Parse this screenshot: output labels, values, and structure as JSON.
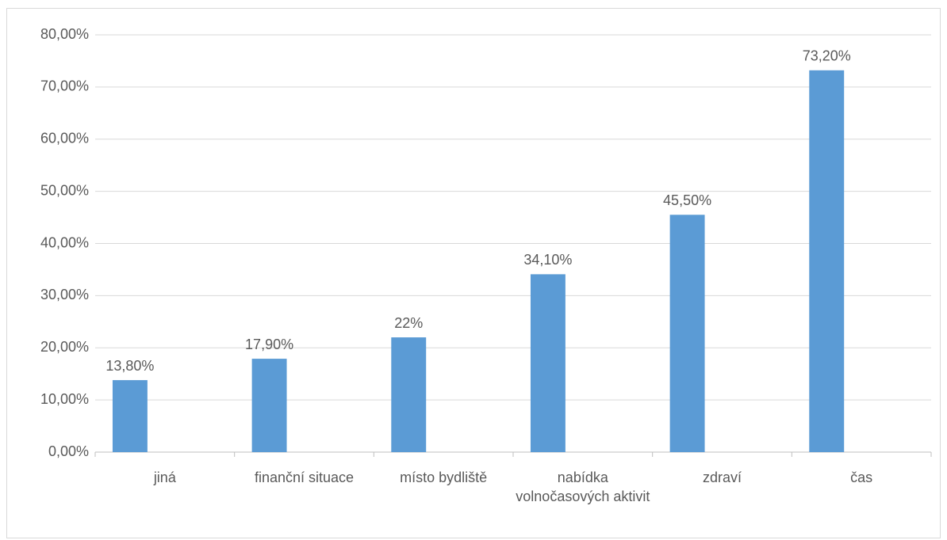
{
  "chart_data": {
    "type": "bar",
    "categories": [
      "jiná",
      "finanční situace",
      "místo bydliště",
      "nabídka volnočasových aktivit",
      "zdraví",
      "čas"
    ],
    "values": [
      13.8,
      17.9,
      22,
      34.1,
      45.5,
      73.2
    ],
    "value_labels": [
      "13,80%",
      "17,90%",
      "22%",
      "34,10%",
      "45,50%",
      "73,20%"
    ],
    "color": "#5b9bd5",
    "ylim": [
      0,
      80
    ],
    "yticks": [
      {
        "value": 0,
        "label": "0,00%"
      },
      {
        "value": 10,
        "label": "10,00%"
      },
      {
        "value": 20,
        "label": "20,00%"
      },
      {
        "value": 30,
        "label": "30,00%"
      },
      {
        "value": 40,
        "label": "40,00%"
      },
      {
        "value": 50,
        "label": "50,00%"
      },
      {
        "value": 60,
        "label": "60,00%"
      },
      {
        "value": 70,
        "label": "70,00%"
      },
      {
        "value": 80,
        "label": "80,00%"
      }
    ],
    "grid": true
  }
}
